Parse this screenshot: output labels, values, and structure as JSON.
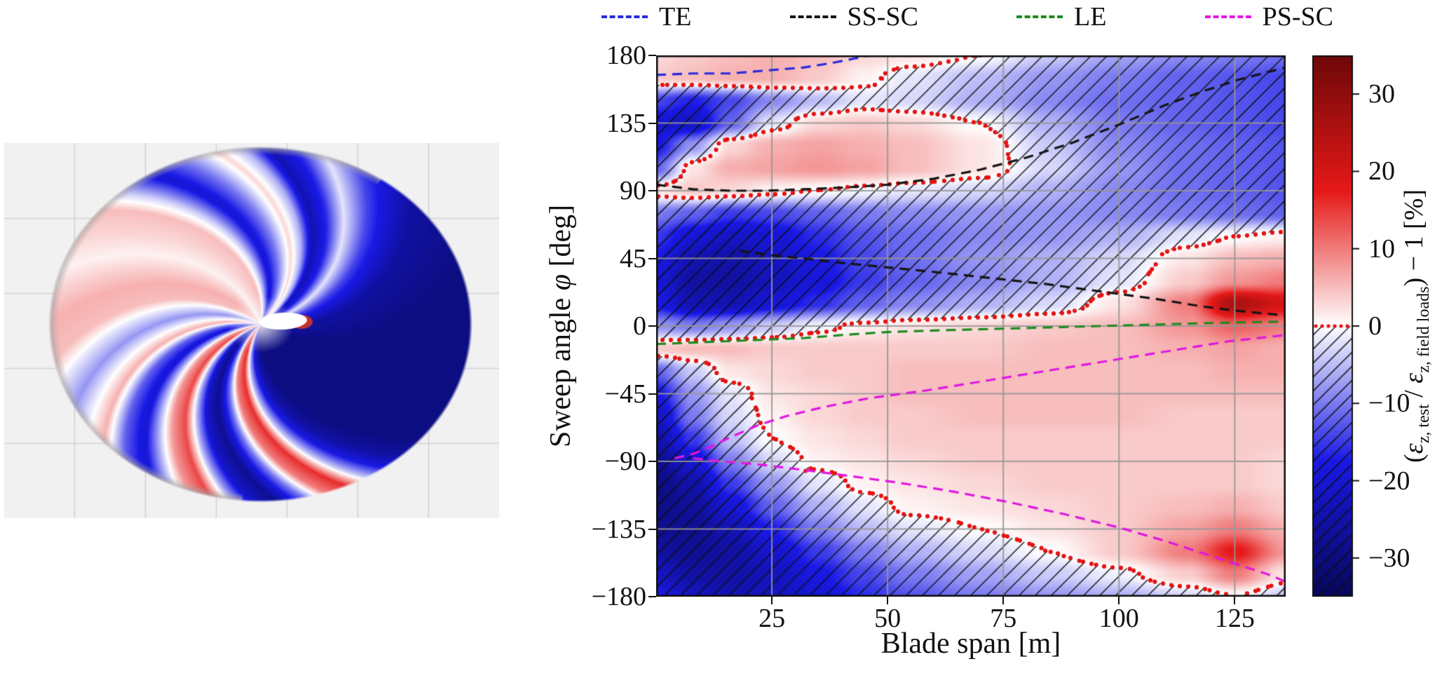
{
  "legend": {
    "items": [
      {
        "label": "TE",
        "color": "#2929e0"
      },
      {
        "label": "SS-SC",
        "color": "#151515"
      },
      {
        "label": "LE",
        "color": "#1e8c1e"
      },
      {
        "label": "PS-SC",
        "color": "#e018e0"
      }
    ],
    "dash": [
      14,
      9
    ]
  },
  "axes": {
    "xlabel": "Blade span [m]",
    "ylabel_pre": "Sweep angle ",
    "ylabel_phi": "φ",
    "ylabel_post": " [deg]"
  },
  "colorbar": {
    "label_pre": "(",
    "eps": "ε",
    "sub1": "z, test",
    "mid": " / ",
    "sub2": "z, field loads",
    "post": ") − 1 [%]",
    "ticks": [
      30,
      20,
      10,
      0,
      -10,
      -20,
      -30
    ]
  },
  "chart_data": {
    "type": "heatmap",
    "title": "",
    "xlabel": "Blade span [m]",
    "ylabel": "Sweep angle φ [deg]",
    "value_label": "(ε_z,test / ε_z,field loads) − 1 [%]",
    "x_range": [
      0,
      136
    ],
    "y_range": [
      -180,
      180
    ],
    "x_ticks": [
      25,
      50,
      75,
      100,
      125
    ],
    "y_ticks": [
      180,
      135,
      90,
      45,
      0,
      -45,
      -90,
      -135,
      -180
    ],
    "value_range": [
      -35,
      35
    ],
    "colorbar_ticks": [
      30,
      20,
      10,
      0,
      -10,
      -20,
      -30
    ],
    "colormap_stops": [
      [
        -35,
        "#08085a"
      ],
      [
        -17.5,
        "#1919e6"
      ],
      [
        0,
        "#ffffff"
      ],
      [
        17.5,
        "#e61919"
      ],
      [
        35,
        "#6e0808"
      ]
    ],
    "hatching": "diagonal black hatch where value < 0",
    "zero_contour_style": {
      "color": "#e51212",
      "style": "dotted",
      "level": 0
    },
    "heatmap": {
      "x_nodes": [
        0,
        8,
        16,
        25,
        35,
        45,
        55,
        70,
        85,
        100,
        115,
        125,
        136
      ],
      "y_nodes": [
        180,
        165,
        150,
        135,
        120,
        105,
        90,
        75,
        60,
        45,
        30,
        15,
        0,
        -15,
        -30,
        -45,
        -60,
        -75,
        -90,
        -105,
        -120,
        -135,
        -150,
        -165,
        -180
      ],
      "values": [
        [
          3,
          4,
          5,
          6,
          5,
          3,
          2,
          0,
          -4,
          -7,
          -9,
          -10,
          -11
        ],
        [
          4,
          5,
          6,
          6,
          4,
          1,
          -2,
          -5,
          -8,
          -10,
          -12,
          -13,
          -14
        ],
        [
          -14,
          -17,
          -14,
          -9,
          -5,
          -2,
          -3,
          -6,
          -9,
          -11,
          -12,
          -13,
          -14
        ],
        [
          -20,
          -22,
          -12,
          -2,
          3,
          4,
          3,
          0,
          -6,
          -10,
          -12,
          -13,
          -14
        ],
        [
          -18,
          -8,
          3,
          6,
          7,
          6,
          5,
          2,
          -4,
          -9,
          -11,
          -12,
          -13
        ],
        [
          -12,
          2,
          6,
          7,
          8,
          7,
          5,
          2,
          -3,
          -8,
          -11,
          -12,
          -13
        ],
        [
          2,
          4,
          3,
          1,
          0,
          -1,
          -2,
          -3,
          -6,
          -9,
          -11,
          -12,
          -13
        ],
        [
          -10,
          -12,
          -15,
          -14,
          -12,
          -10,
          -9,
          -8,
          -8,
          -9,
          -10,
          -11,
          -12
        ],
        [
          -15,
          -20,
          -22,
          -20,
          -16,
          -13,
          -11,
          -9,
          -8,
          -6,
          -2,
          0,
          1
        ],
        [
          -18,
          -24,
          -25,
          -22,
          -18,
          -14,
          -11,
          -8,
          -6,
          -3,
          2,
          5,
          6
        ],
        [
          -20,
          -26,
          -26,
          -23,
          -19,
          -15,
          -12,
          -9,
          -6,
          -2,
          4,
          8,
          10
        ],
        [
          -18,
          -24,
          -24,
          -20,
          -16,
          -12,
          -9,
          -6,
          -3,
          2,
          10,
          26,
          20
        ],
        [
          -8,
          -10,
          -8,
          -4,
          -1,
          1,
          2,
          3,
          4,
          5,
          8,
          12,
          10
        ],
        [
          4,
          5,
          5,
          4,
          4,
          4,
          4,
          4,
          5,
          5,
          6,
          7,
          6
        ],
        [
          -12,
          -4,
          2,
          3,
          4,
          4,
          5,
          5,
          5,
          5,
          5,
          6,
          6
        ],
        [
          -18,
          -8,
          -2,
          2,
          3,
          4,
          5,
          5,
          5,
          5,
          5,
          5,
          5
        ],
        [
          -22,
          -10,
          -3,
          1,
          3,
          4,
          4,
          5,
          5,
          5,
          4,
          4,
          4
        ],
        [
          -25,
          -15,
          -5,
          0,
          2,
          3,
          4,
          4,
          4,
          4,
          4,
          4,
          4
        ],
        [
          -28,
          -20,
          -10,
          -3,
          1,
          2,
          3,
          4,
          4,
          4,
          4,
          4,
          3
        ],
        [
          -30,
          -25,
          -15,
          -8,
          -2,
          1,
          2,
          3,
          4,
          4,
          4,
          4,
          3
        ],
        [
          -30,
          -27,
          -20,
          -12,
          -6,
          -2,
          1,
          2,
          3,
          4,
          5,
          6,
          4
        ],
        [
          -28,
          -28,
          -24,
          -17,
          -10,
          -5,
          -2,
          0,
          2,
          4,
          7,
          10,
          6
        ],
        [
          -26,
          -28,
          -26,
          -21,
          -15,
          -10,
          -6,
          -3,
          0,
          4,
          10,
          18,
          8
        ],
        [
          -22,
          -26,
          -26,
          -23,
          -18,
          -14,
          -10,
          -7,
          -4,
          -1,
          4,
          10,
          2
        ],
        [
          -18,
          -22,
          -24,
          -22,
          -20,
          -16,
          -13,
          -10,
          -8,
          -6,
          -3,
          0,
          -4
        ]
      ]
    },
    "feature_lines": [
      {
        "name": "TE",
        "color": "#2929e0",
        "points": [
          [
            0,
            167
          ],
          [
            8,
            168
          ],
          [
            16,
            168
          ],
          [
            24,
            170
          ],
          [
            32,
            172
          ],
          [
            38,
            175
          ],
          [
            43,
            178
          ],
          [
            46,
            180
          ]
        ]
      },
      {
        "name": "SS-SC",
        "color": "#151515",
        "points": [
          [
            0,
            94
          ],
          [
            8,
            91
          ],
          [
            16,
            90
          ],
          [
            24,
            90
          ],
          [
            32,
            91
          ],
          [
            40,
            92
          ],
          [
            50,
            94
          ],
          [
            60,
            98
          ],
          [
            70,
            104
          ],
          [
            80,
            112
          ],
          [
            90,
            122
          ],
          [
            100,
            134
          ],
          [
            110,
            147
          ],
          [
            118,
            156
          ],
          [
            126,
            164
          ],
          [
            136,
            172
          ]
        ]
      },
      {
        "name": "SS-SC",
        "color": "#151515",
        "points": [
          [
            18,
            50
          ],
          [
            25,
            47
          ],
          [
            32,
            45
          ],
          [
            40,
            42
          ],
          [
            50,
            39
          ],
          [
            60,
            36
          ],
          [
            72,
            32
          ],
          [
            84,
            28
          ],
          [
            96,
            23
          ],
          [
            108,
            18
          ],
          [
            118,
            13
          ],
          [
            126,
            10
          ],
          [
            136,
            7
          ]
        ]
      },
      {
        "name": "LE",
        "color": "#1e8c1e",
        "points": [
          [
            0,
            -12
          ],
          [
            8,
            -11
          ],
          [
            16,
            -10
          ],
          [
            24,
            -9
          ],
          [
            32,
            -8
          ],
          [
            40,
            -6
          ],
          [
            50,
            -4
          ],
          [
            60,
            -3
          ],
          [
            72,
            -2
          ],
          [
            84,
            -1
          ],
          [
            96,
            0
          ],
          [
            108,
            1
          ],
          [
            120,
            2
          ],
          [
            136,
            3
          ]
        ]
      },
      {
        "name": "PS-SC",
        "color": "#e018e0",
        "points": [
          [
            4,
            -88
          ],
          [
            8,
            -85
          ],
          [
            12,
            -80
          ],
          [
            16,
            -74
          ],
          [
            22,
            -66
          ],
          [
            28,
            -60
          ],
          [
            36,
            -54
          ],
          [
            46,
            -48
          ],
          [
            58,
            -43
          ],
          [
            70,
            -37
          ],
          [
            82,
            -31
          ],
          [
            94,
            -25
          ],
          [
            104,
            -20
          ],
          [
            114,
            -15
          ],
          [
            124,
            -10
          ],
          [
            130,
            -8
          ],
          [
            136,
            -6
          ]
        ]
      },
      {
        "name": "PS-SC",
        "color": "#e018e0",
        "points": [
          [
            8,
            -88
          ],
          [
            14,
            -90
          ],
          [
            22,
            -92
          ],
          [
            30,
            -95
          ],
          [
            40,
            -99
          ],
          [
            52,
            -104
          ],
          [
            64,
            -110
          ],
          [
            76,
            -117
          ],
          [
            88,
            -125
          ],
          [
            100,
            -134
          ],
          [
            110,
            -143
          ],
          [
            118,
            -151
          ],
          [
            126,
            -159
          ],
          [
            132,
            -165
          ],
          [
            136,
            -170
          ]
        ]
      }
    ]
  },
  "blade_view": {
    "description": "3D rendering of swept wind-turbine blade viewed along the pitch axis, colored with the same strain-ratio colormap, on a light gray grid",
    "twist_deg": 55,
    "band_stops": [
      [
        0,
        -30
      ],
      [
        20,
        -30
      ],
      [
        45,
        -26
      ],
      [
        62,
        -14
      ],
      [
        72,
        -2
      ],
      [
        80,
        -16
      ],
      [
        88,
        -24
      ],
      [
        95,
        -6
      ],
      [
        102,
        3
      ],
      [
        112,
        -10
      ],
      [
        122,
        -20
      ],
      [
        132,
        -4
      ],
      [
        140,
        5
      ],
      [
        152,
        3
      ],
      [
        162,
        1
      ],
      [
        172,
        4
      ],
      [
        180,
        6
      ],
      [
        192,
        5
      ],
      [
        200,
        -2
      ],
      [
        208,
        -8
      ],
      [
        214,
        -2
      ],
      [
        222,
        6
      ],
      [
        230,
        -12
      ],
      [
        238,
        -20
      ],
      [
        244,
        -6
      ],
      [
        250,
        8
      ],
      [
        256,
        14
      ],
      [
        262,
        -6
      ],
      [
        268,
        -22
      ],
      [
        274,
        -28
      ],
      [
        282,
        -10
      ],
      [
        288,
        10
      ],
      [
        294,
        16
      ],
      [
        300,
        -4
      ],
      [
        306,
        -18
      ],
      [
        312,
        -26
      ],
      [
        320,
        -30
      ],
      [
        330,
        -30
      ],
      [
        345,
        -30
      ],
      [
        360,
        -30
      ]
    ]
  }
}
